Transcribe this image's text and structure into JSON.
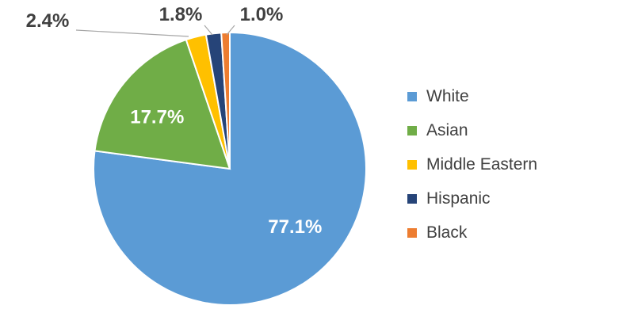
{
  "chart_data": {
    "type": "pie",
    "slices": [
      {
        "name": "White",
        "value": 77.1,
        "label": "77.1%",
        "color": "#5B9BD5"
      },
      {
        "name": "Asian",
        "value": 17.7,
        "label": "17.7%",
        "color": "#70AD47"
      },
      {
        "name": "Middle Eastern",
        "value": 2.4,
        "label": "2.4%",
        "color": "#FFC000"
      },
      {
        "name": "Hispanic",
        "value": 1.8,
        "label": "1.8%",
        "color": "#264478"
      },
      {
        "name": "Black",
        "value": 1.0,
        "label": "1.0%",
        "color": "#ED7D31"
      }
    ],
    "legend_position": "right",
    "legend": [
      "White",
      "Asian",
      "Middle Eastern",
      "Hispanic",
      "Black"
    ]
  }
}
